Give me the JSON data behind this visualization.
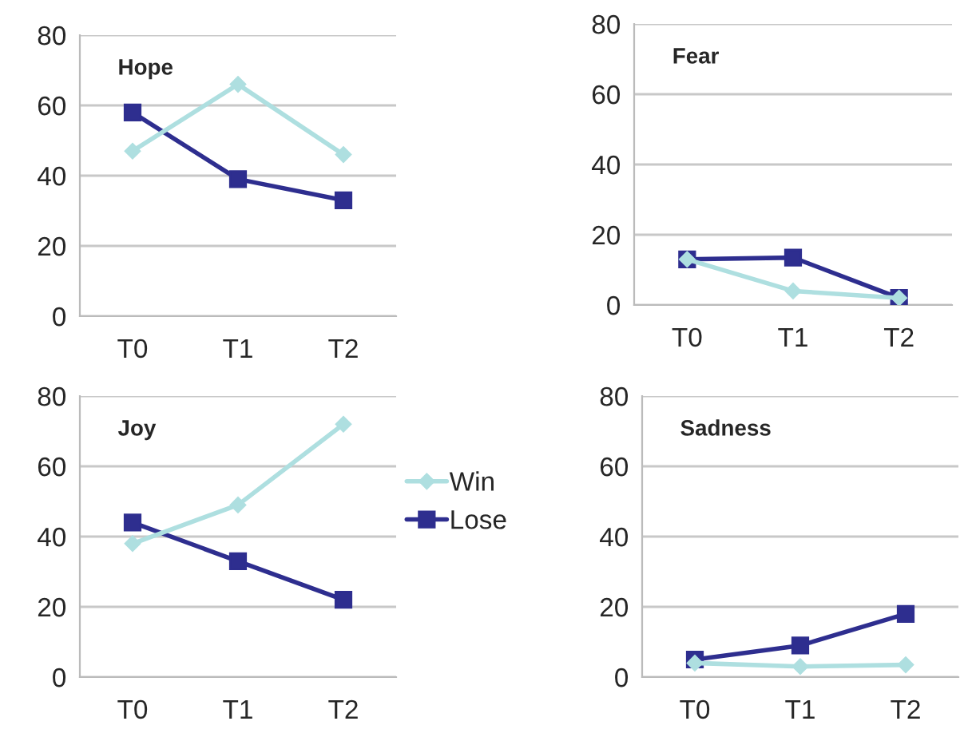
{
  "chart_data": [
    {
      "type": "line",
      "title": "Hope",
      "categories": [
        "T0",
        "T1",
        "T2"
      ],
      "ylim": [
        0,
        80
      ],
      "yticks": [
        0,
        20,
        40,
        60,
        80
      ],
      "grid": "y",
      "legend": false,
      "series": [
        {
          "color": "#aedfe0",
          "marker": "diamond",
          "values": [
            47,
            66,
            46
          ]
        },
        {
          "color": "#2e2e8f",
          "marker": "square",
          "values": [
            58,
            39,
            33
          ]
        }
      ]
    },
    {
      "type": "line",
      "title": "Fear",
      "categories": [
        "T0",
        "T1",
        "T2"
      ],
      "ylim": [
        0,
        80
      ],
      "yticks": [
        0,
        20,
        40,
        60,
        80
      ],
      "grid": "y",
      "legend": false,
      "series": [
        {
          "color": "#aedfe0",
          "marker": "diamond",
          "values": [
            13,
            4,
            2
          ]
        },
        {
          "color": "#2e2e8f",
          "marker": "square",
          "values": [
            13,
            13.5,
            2
          ]
        }
      ]
    },
    {
      "type": "line",
      "title": "Joy",
      "categories": [
        "T0",
        "T1",
        "T2"
      ],
      "ylim": [
        0,
        80
      ],
      "yticks": [
        0,
        20,
        40,
        60,
        80
      ],
      "grid": "y",
      "legend": "right",
      "series": [
        {
          "name": "Win",
          "color": "#aedfe0",
          "marker": "diamond",
          "values": [
            38,
            49,
            72
          ]
        },
        {
          "name": "Lose",
          "color": "#2e2e8f",
          "marker": "square",
          "values": [
            44,
            33,
            22
          ]
        }
      ]
    },
    {
      "type": "line",
      "title": "Sadness",
      "categories": [
        "T0",
        "T1",
        "T2"
      ],
      "ylim": [
        0,
        80
      ],
      "yticks": [
        0,
        20,
        40,
        60,
        80
      ],
      "grid": "y",
      "legend": false,
      "series": [
        {
          "color": "#aedfe0",
          "marker": "diamond",
          "values": [
            4,
            3,
            3.5
          ]
        },
        {
          "color": "#2e2e8f",
          "marker": "square",
          "values": [
            5,
            9,
            18
          ]
        }
      ]
    }
  ]
}
